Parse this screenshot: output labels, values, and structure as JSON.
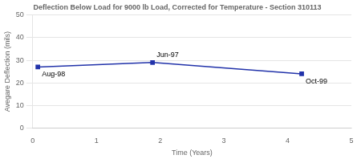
{
  "chart_data": {
    "type": "line",
    "title": "Deflection Below Load for 9000 lb Load, Corrected for Temperature - Section 310113",
    "x_label": "Time (Years)",
    "y_label": "Avegare Deflection (mils)",
    "x": [
      0.08,
      1.88,
      4.22
    ],
    "values": [
      27.0,
      29.0,
      24.0
    ],
    "color": "#2233AA",
    "marker": "square",
    "annotations": [
      {
        "x": 0.08,
        "y": 27.0,
        "text": "Aug-98"
      },
      {
        "x": 1.88,
        "y": 29.0,
        "text": "Jun-97"
      },
      {
        "x": 4.22,
        "y": 24.0,
        "text": "Oct-99"
      }
    ],
    "xlim": [
      0,
      5
    ],
    "xticks": [
      0,
      1,
      2,
      3,
      4,
      5
    ],
    "ylim": [
      0,
      50
    ],
    "yticks": [
      0,
      10,
      20,
      30,
      40,
      50
    ],
    "grid": "y"
  }
}
